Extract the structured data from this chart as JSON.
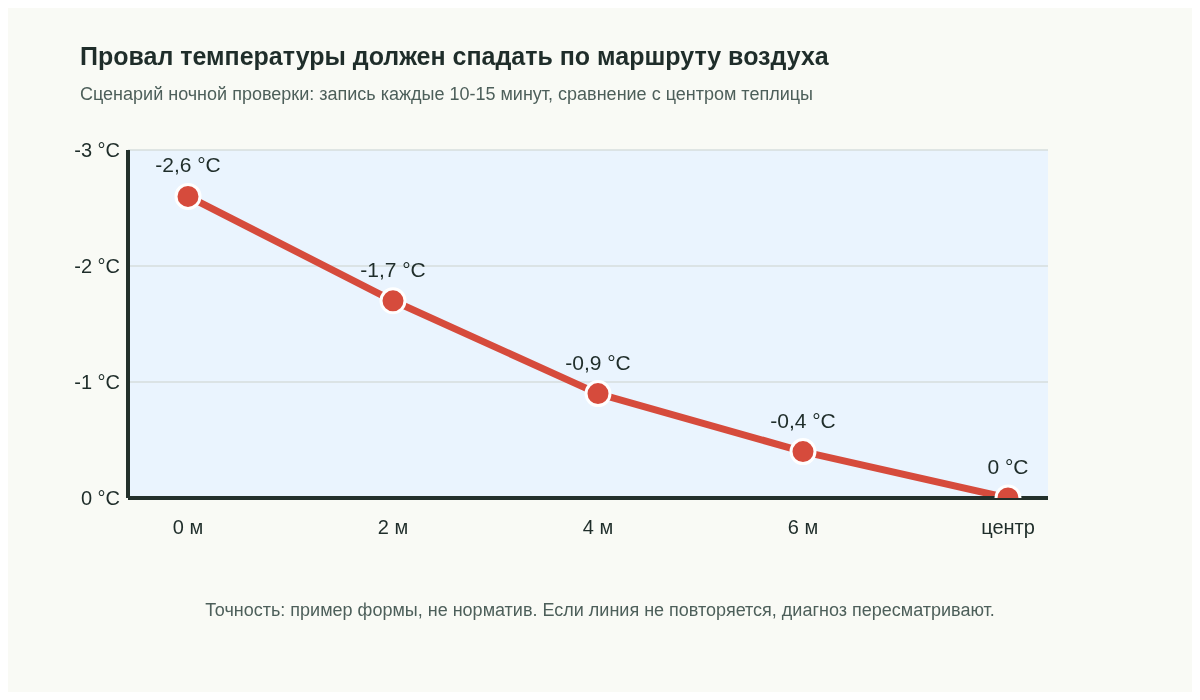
{
  "chart_data": {
    "type": "line",
    "title": "Провал температуры должен спадать по маршруту воздуха",
    "subtitle": "Сценарий ночной проверки: запись каждые 10-15 минут, сравнение с центром теплицы",
    "categories": [
      "0 м",
      "2 м",
      "4 м",
      "6 м",
      "центр"
    ],
    "series": [
      {
        "color": "#d64b3c",
        "values": [
          -2.6,
          -1.7,
          -0.9,
          -0.4,
          0
        ],
        "value_labels": [
          "-2,6 °C",
          "-1,7 °C",
          "-0,9 °C",
          "-0,4 °C",
          "0 °C"
        ]
      }
    ],
    "ylim": [
      0,
      -3
    ],
    "yticks": [
      {
        "value": -3,
        "label": "-3 °C"
      },
      {
        "value": -2,
        "label": "-2 °C"
      },
      {
        "value": -1,
        "label": "-1 °C"
      },
      {
        "value": 0,
        "label": "0 °C"
      }
    ],
    "grid": "y",
    "marker": "circle",
    "line_style": "solid",
    "annotations": [
      "Точность: пример формы, не норматив. Если линия не повторяется, диагноз пересматривают."
    ]
  }
}
